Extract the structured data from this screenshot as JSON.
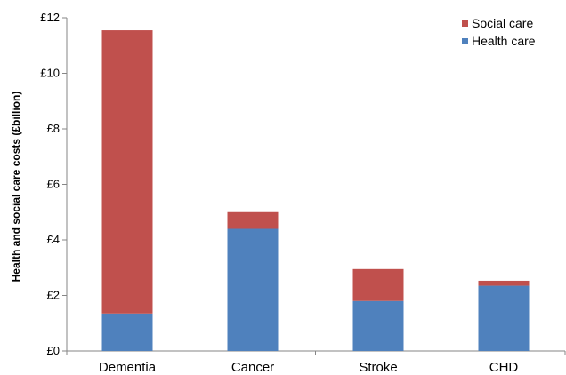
{
  "chart_data": {
    "type": "bar",
    "stacked": true,
    "categories": [
      "Dementia",
      "Cancer",
      "Stroke",
      "CHD"
    ],
    "series": [
      {
        "name": "Health care",
        "values": [
          1.35,
          4.4,
          1.8,
          2.35
        ],
        "color": "#4f81bd"
      },
      {
        "name": "Social care",
        "values": [
          10.2,
          0.6,
          1.15,
          0.18
        ],
        "color": "#c0504d"
      }
    ],
    "ylabel": "Health and social care costs (£billion)",
    "xlabel": "",
    "title": "",
    "ylim": [
      0,
      12
    ],
    "yticks": [
      {
        "value": 0,
        "label": "£0"
      },
      {
        "value": 2,
        "label": "£2"
      },
      {
        "value": 4,
        "label": "£4"
      },
      {
        "value": 6,
        "label": "£6"
      },
      {
        "value": 8,
        "label": "£8"
      },
      {
        "value": 10,
        "label": "£10"
      },
      {
        "value": 12,
        "label": "£12"
      }
    ],
    "legend": {
      "placement": "top-right",
      "entries": [
        {
          "label": "Social care",
          "color": "#c0504d"
        },
        {
          "label": "Health care",
          "color": "#4f81bd"
        }
      ]
    },
    "grid": false
  }
}
